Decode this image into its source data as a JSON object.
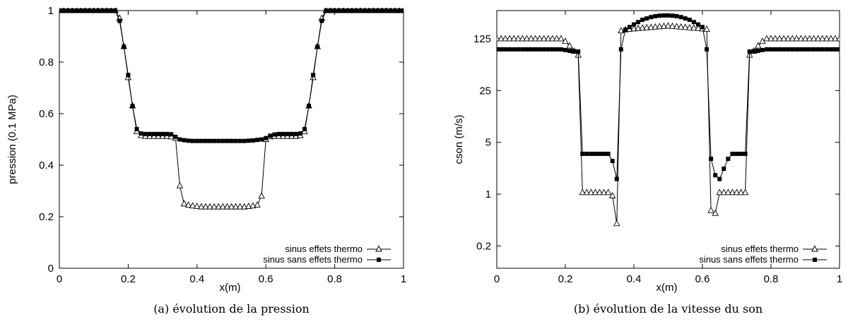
{
  "chart_data": [
    {
      "type": "line",
      "caption": "(a) évolution de la pression",
      "xlabel": "x(m)",
      "ylabel": "pression (0.1 MPa)",
      "xlim": [
        0,
        1
      ],
      "ylim": [
        0,
        1
      ],
      "xticks": [
        0,
        0.2,
        0.4,
        0.6,
        0.8,
        1
      ],
      "xtick_labels": [
        "0",
        "0.2",
        "0.4",
        "0.6",
        "0.8",
        "1"
      ],
      "yticks": [
        0,
        0.2,
        0.4,
        0.6,
        0.8,
        1
      ],
      "ytick_labels": [
        "0",
        "0.2",
        "0.4",
        "0.6",
        "0.8",
        "1"
      ],
      "yscale": "linear",
      "legend_position": "bottom-right",
      "series": [
        {
          "name": "sinus effets thermo",
          "marker": "triangle-open",
          "x": [
            0,
            0.0125,
            0.025,
            0.0375,
            0.05,
            0.0625,
            0.075,
            0.0875,
            0.1,
            0.1125,
            0.125,
            0.1375,
            0.15,
            0.1625,
            0.175,
            0.1875,
            0.2,
            0.2125,
            0.225,
            0.2375,
            0.25,
            0.2625,
            0.275,
            0.2875,
            0.3,
            0.3125,
            0.325,
            0.3375,
            0.35,
            0.3625,
            0.375,
            0.3875,
            0.4,
            0.4125,
            0.425,
            0.4375,
            0.45,
            0.4625,
            0.475,
            0.4875,
            0.5,
            0.5125,
            0.525,
            0.5375,
            0.55,
            0.5625,
            0.575,
            0.5875,
            0.6,
            0.6125,
            0.625,
            0.6375,
            0.65,
            0.6625,
            0.675,
            0.6875,
            0.7,
            0.7125,
            0.725,
            0.7375,
            0.75,
            0.7625,
            0.775,
            0.7875,
            0.8,
            0.8125,
            0.825,
            0.8375,
            0.85,
            0.8625,
            0.875,
            0.8875,
            0.9,
            0.9125,
            0.925,
            0.9375,
            0.95,
            0.9625,
            0.975,
            0.9875,
            1
          ],
          "y": [
            1,
            1,
            1,
            1,
            1,
            1,
            1,
            1,
            1,
            1,
            1,
            1,
            1,
            1,
            0.97,
            0.86,
            0.74,
            0.63,
            0.53,
            0.515,
            0.512,
            0.512,
            0.512,
            0.512,
            0.512,
            0.512,
            0.51,
            0.505,
            0.32,
            0.25,
            0.245,
            0.242,
            0.24,
            0.238,
            0.238,
            0.238,
            0.238,
            0.238,
            0.238,
            0.238,
            0.238,
            0.238,
            0.238,
            0.238,
            0.24,
            0.242,
            0.245,
            0.28,
            0.5,
            0.51,
            0.512,
            0.512,
            0.512,
            0.512,
            0.512,
            0.512,
            0.515,
            0.53,
            0.63,
            0.74,
            0.86,
            0.97,
            1,
            1,
            1,
            1,
            1,
            1,
            1,
            1,
            1,
            1,
            1,
            1,
            1,
            1,
            1,
            1,
            1,
            1,
            1
          ]
        },
        {
          "name": "sinus sans effets thermo",
          "marker": "square-filled",
          "x": [
            0,
            0.0125,
            0.025,
            0.0375,
            0.05,
            0.0625,
            0.075,
            0.0875,
            0.1,
            0.1125,
            0.125,
            0.1375,
            0.15,
            0.1625,
            0.175,
            0.1875,
            0.2,
            0.2125,
            0.225,
            0.2375,
            0.25,
            0.2625,
            0.275,
            0.2875,
            0.3,
            0.3125,
            0.325,
            0.3375,
            0.35,
            0.3625,
            0.375,
            0.3875,
            0.4,
            0.4125,
            0.425,
            0.4375,
            0.45,
            0.4625,
            0.475,
            0.4875,
            0.5,
            0.5125,
            0.525,
            0.5375,
            0.55,
            0.5625,
            0.575,
            0.5875,
            0.6,
            0.6125,
            0.625,
            0.6375,
            0.65,
            0.6625,
            0.675,
            0.6875,
            0.7,
            0.7125,
            0.725,
            0.7375,
            0.75,
            0.7625,
            0.775,
            0.7875,
            0.8,
            0.8125,
            0.825,
            0.8375,
            0.85,
            0.8625,
            0.875,
            0.8875,
            0.9,
            0.9125,
            0.925,
            0.9375,
            0.95,
            0.9625,
            0.975,
            0.9875,
            1
          ],
          "y": [
            1,
            1,
            1,
            1,
            1,
            1,
            1,
            1,
            1,
            1,
            1,
            1,
            1,
            1,
            0.96,
            0.86,
            0.75,
            0.63,
            0.54,
            0.523,
            0.521,
            0.521,
            0.521,
            0.521,
            0.521,
            0.521,
            0.52,
            0.51,
            0.5,
            0.497,
            0.495,
            0.494,
            0.494,
            0.494,
            0.494,
            0.494,
            0.494,
            0.494,
            0.494,
            0.494,
            0.494,
            0.494,
            0.494,
            0.494,
            0.495,
            0.496,
            0.498,
            0.5,
            0.505,
            0.514,
            0.519,
            0.521,
            0.521,
            0.521,
            0.521,
            0.521,
            0.523,
            0.54,
            0.63,
            0.75,
            0.86,
            0.96,
            1,
            1,
            1,
            1,
            1,
            1,
            1,
            1,
            1,
            1,
            1,
            1,
            1,
            1,
            1,
            1,
            1,
            1,
            1
          ]
        }
      ]
    },
    {
      "type": "line",
      "caption": "(b) évolution de la vitesse du son",
      "xlabel": "x(m)",
      "ylabel": "cson (m/s)",
      "xlim": [
        0,
        1
      ],
      "ylim": [
        0.1,
        300
      ],
      "xticks": [
        0,
        0.2,
        0.4,
        0.6,
        0.8,
        1
      ],
      "xtick_labels": [
        "0",
        "0.2",
        "0.4",
        "0.6",
        "0.8",
        "1"
      ],
      "yticks": [
        0.2,
        1,
        5,
        25,
        125
      ],
      "ytick_labels": [
        "0.2",
        "1",
        "5",
        "25",
        "125"
      ],
      "yscale": "log",
      "legend_position": "bottom-right",
      "series": [
        {
          "name": "sinus effets thermo",
          "marker": "triangle-open",
          "x": [
            0,
            0.0125,
            0.025,
            0.0375,
            0.05,
            0.0625,
            0.075,
            0.0875,
            0.1,
            0.1125,
            0.125,
            0.1375,
            0.15,
            0.1625,
            0.175,
            0.1875,
            0.2,
            0.2125,
            0.225,
            0.2375,
            0.25,
            0.2625,
            0.275,
            0.2875,
            0.3,
            0.3125,
            0.325,
            0.3375,
            0.35,
            0.3625,
            0.375,
            0.3875,
            0.4,
            0.4125,
            0.425,
            0.4375,
            0.45,
            0.4625,
            0.475,
            0.4875,
            0.5,
            0.5125,
            0.525,
            0.5375,
            0.55,
            0.5625,
            0.575,
            0.5875,
            0.6,
            0.6125,
            0.625,
            0.6375,
            0.65,
            0.6625,
            0.675,
            0.6875,
            0.7,
            0.7125,
            0.725,
            0.7375,
            0.75,
            0.7625,
            0.775,
            0.7875,
            0.8,
            0.8125,
            0.825,
            0.8375,
            0.85,
            0.8625,
            0.875,
            0.8875,
            0.9,
            0.9125,
            0.925,
            0.9375,
            0.95,
            0.9625,
            0.975,
            0.9875,
            1
          ],
          "y": [
            125,
            125,
            125,
            125,
            125,
            125,
            125,
            125,
            125,
            125,
            125,
            125,
            125,
            125,
            125,
            125,
            115,
            100,
            85,
            75,
            1.05,
            1.05,
            1.05,
            1.05,
            1.05,
            1.05,
            1.05,
            0.95,
            0.4,
            160,
            165,
            168,
            170,
            172,
            174,
            176,
            178,
            180,
            182,
            184,
            186,
            184,
            182,
            180,
            178,
            176,
            174,
            172,
            170,
            168,
            0.6,
            0.55,
            1.05,
            1.05,
            1.05,
            1.05,
            1.05,
            1.05,
            1.05,
            75,
            85,
            100,
            115,
            125,
            125,
            125,
            125,
            125,
            125,
            125,
            125,
            125,
            125,
            125,
            125,
            125,
            125,
            125,
            125,
            125,
            125
          ]
        },
        {
          "name": "sinus sans effets thermo",
          "marker": "square-filled",
          "x": [
            0,
            0.0125,
            0.025,
            0.0375,
            0.05,
            0.0625,
            0.075,
            0.0875,
            0.1,
            0.1125,
            0.125,
            0.1375,
            0.15,
            0.1625,
            0.175,
            0.1875,
            0.2,
            0.2125,
            0.225,
            0.2375,
            0.25,
            0.2625,
            0.275,
            0.2875,
            0.3,
            0.3125,
            0.325,
            0.3375,
            0.35,
            0.3625,
            0.375,
            0.3875,
            0.4,
            0.4125,
            0.425,
            0.4375,
            0.45,
            0.4625,
            0.475,
            0.4875,
            0.5,
            0.5125,
            0.525,
            0.5375,
            0.55,
            0.5625,
            0.575,
            0.5875,
            0.6,
            0.6125,
            0.625,
            0.6375,
            0.65,
            0.6625,
            0.675,
            0.6875,
            0.7,
            0.7125,
            0.725,
            0.7375,
            0.75,
            0.7625,
            0.775,
            0.7875,
            0.8,
            0.8125,
            0.825,
            0.8375,
            0.85,
            0.8625,
            0.875,
            0.8875,
            0.9,
            0.9125,
            0.925,
            0.9375,
            0.95,
            0.9625,
            0.975,
            0.9875,
            1
          ],
          "y": [
            90,
            90,
            90,
            90,
            90,
            90,
            90,
            90,
            90,
            90,
            90,
            90,
            90,
            90,
            90,
            90,
            88,
            86,
            85,
            84,
            3.5,
            3.5,
            3.5,
            3.5,
            3.5,
            3.5,
            3.5,
            2.8,
            1.6,
            90,
            165,
            180,
            195,
            210,
            225,
            235,
            245,
            252,
            256,
            258,
            258,
            256,
            252,
            245,
            235,
            225,
            210,
            195,
            180,
            90,
            3,
            1.8,
            1.6,
            2.2,
            3,
            3.5,
            3.5,
            3.5,
            3.5,
            84,
            85,
            86,
            88,
            90,
            90,
            90,
            90,
            90,
            90,
            90,
            90,
            90,
            90,
            90,
            90,
            90,
            90,
            90,
            90,
            90,
            90
          ]
        }
      ]
    }
  ]
}
